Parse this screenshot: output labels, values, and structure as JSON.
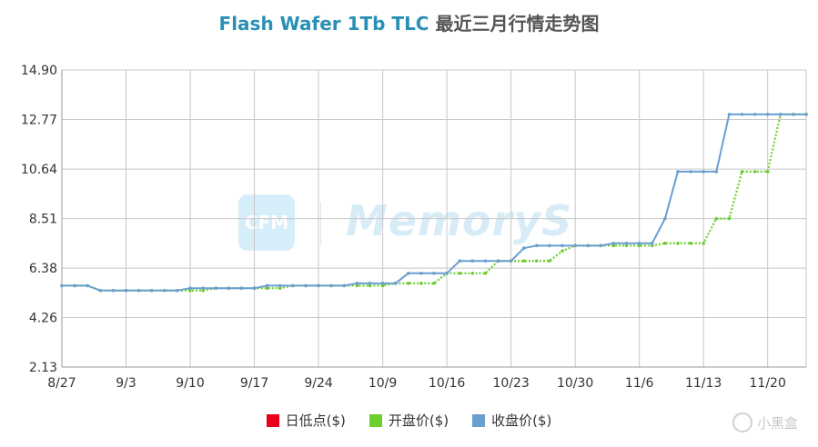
{
  "chart_data": {
    "type": "line",
    "title_main": "Flash Wafer 1Tb TLC",
    "title_sub": "最近三月行情走势图",
    "ylim": [
      2.13,
      14.9
    ],
    "yticks": [
      "14.90",
      "12.77",
      "10.64",
      "8.51",
      "6.38",
      "4.26",
      "2.13"
    ],
    "ytick_values": [
      14.9,
      12.77,
      10.64,
      8.51,
      6.38,
      4.26,
      2.13
    ],
    "xticks": [
      "8/27",
      "9/3",
      "9/10",
      "9/17",
      "9/24",
      "10/9",
      "10/16",
      "10/23",
      "10/30",
      "11/6",
      "11/13",
      "11/20"
    ],
    "xtick_index": [
      0,
      5,
      10,
      15,
      20,
      25,
      30,
      35,
      40,
      45,
      50,
      55
    ],
    "x_count": 59,
    "grid": true,
    "legend_position": "bottom",
    "series": [
      {
        "name": "日低点($)",
        "color": "#e8001c",
        "style": "none",
        "values": []
      },
      {
        "name": "开盘价($)",
        "color": "#6ccf2e",
        "style": "dotted",
        "values": [
          5.63,
          5.63,
          5.63,
          5.42,
          5.42,
          5.42,
          5.42,
          5.42,
          5.42,
          5.42,
          5.42,
          5.42,
          5.52,
          5.52,
          5.52,
          5.52,
          5.52,
          5.52,
          5.63,
          5.63,
          5.63,
          5.63,
          5.63,
          5.63,
          5.63,
          5.63,
          5.73,
          5.73,
          5.73,
          5.73,
          6.16,
          6.16,
          6.16,
          6.16,
          6.69,
          6.69,
          6.69,
          6.69,
          6.69,
          7.12,
          7.35,
          7.35,
          7.35,
          7.35,
          7.35,
          7.35,
          7.35,
          7.45,
          7.45,
          7.45,
          7.45,
          8.51,
          8.51,
          10.53,
          10.53,
          10.53,
          12.99,
          12.99,
          12.99
        ]
      },
      {
        "name": "收盘价($)",
        "color": "#6a9fd0",
        "style": "solid",
        "values": [
          5.63,
          5.63,
          5.63,
          5.42,
          5.42,
          5.42,
          5.42,
          5.42,
          5.42,
          5.42,
          5.52,
          5.52,
          5.52,
          5.52,
          5.52,
          5.52,
          5.63,
          5.63,
          5.63,
          5.63,
          5.63,
          5.63,
          5.63,
          5.73,
          5.73,
          5.73,
          5.73,
          6.16,
          6.16,
          6.16,
          6.16,
          6.69,
          6.69,
          6.69,
          6.69,
          6.69,
          7.24,
          7.35,
          7.35,
          7.35,
          7.35,
          7.35,
          7.35,
          7.45,
          7.45,
          7.45,
          7.45,
          8.51,
          10.53,
          10.53,
          10.53,
          10.53,
          12.99,
          12.99,
          12.99,
          12.99,
          12.99,
          12.99,
          12.99
        ]
      }
    ]
  },
  "watermark": {
    "logo_text": "CFM",
    "text": "MemoryS"
  },
  "brand": {
    "icon": "heybox-icon",
    "label": "小黑盒"
  }
}
